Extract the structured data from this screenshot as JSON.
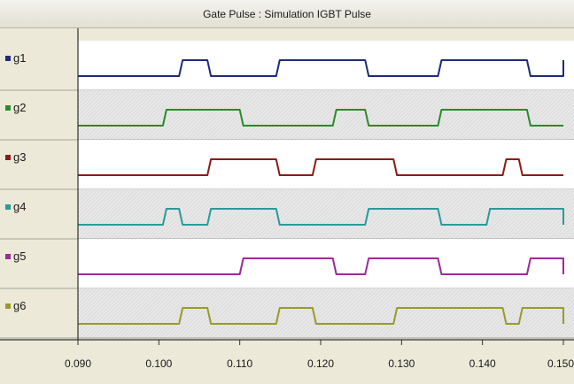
{
  "window": {
    "title": "Gate Pulse : Simulation IGBT Pulse"
  },
  "chart_data": {
    "type": "line",
    "subtype": "digital-timing",
    "xlim": [
      0.09,
      0.15
    ],
    "x_ticks": [
      "0.090",
      "0.100",
      "0.110",
      "0.120",
      "0.130",
      "0.140",
      "0.150"
    ],
    "grid": false,
    "legend": "left",
    "series": [
      {
        "name": "g1",
        "color": "#1f2a7a",
        "high_intervals": [
          [
            0.1025,
            0.106
          ],
          [
            0.1145,
            0.1255
          ],
          [
            0.1345,
            0.1455
          ],
          [
            0.15,
            0.15
          ]
        ]
      },
      {
        "name": "g2",
        "color": "#2a8a2a",
        "high_intervals": [
          [
            0.1005,
            0.11
          ],
          [
            0.1215,
            0.1255
          ],
          [
            0.1345,
            0.1455
          ]
        ]
      },
      {
        "name": "g3",
        "color": "#8b1a1a",
        "high_intervals": [
          [
            0.106,
            0.1145
          ],
          [
            0.119,
            0.129
          ],
          [
            0.1425,
            0.1445
          ]
        ]
      },
      {
        "name": "g4",
        "color": "#2a9a9a",
        "high_intervals": [
          [
            0.1005,
            0.1025
          ],
          [
            0.106,
            0.1145
          ],
          [
            0.1255,
            0.1345
          ],
          [
            0.1405,
            0.15
          ]
        ]
      },
      {
        "name": "g5",
        "color": "#9a2a9a",
        "high_intervals": [
          [
            0.11,
            0.1215
          ],
          [
            0.1255,
            0.1345
          ],
          [
            0.1455,
            0.15
          ]
        ]
      },
      {
        "name": "g6",
        "color": "#9a9a2a",
        "high_intervals": [
          [
            0.1025,
            0.106
          ],
          [
            0.1145,
            0.119
          ],
          [
            0.129,
            0.1425
          ],
          [
            0.1445,
            0.15
          ]
        ]
      }
    ]
  }
}
